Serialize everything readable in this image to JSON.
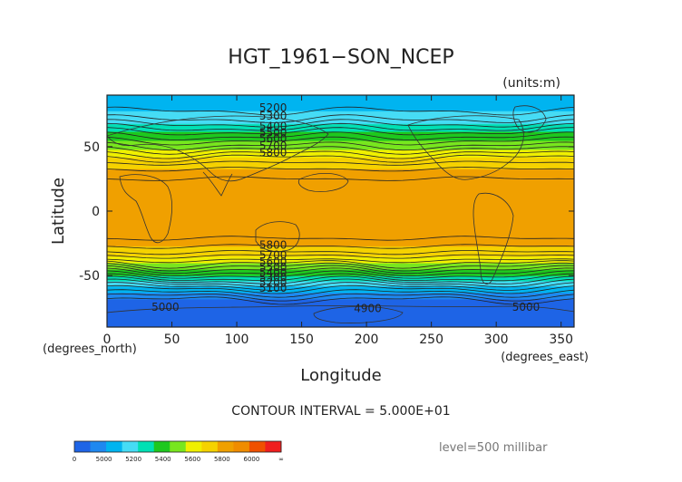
{
  "chart_data": {
    "type": "heatmap",
    "title": "HGT_1961−SON_NCEP",
    "units": "(units:m)",
    "xlabel": "Longitude",
    "ylabel": "Latitude",
    "x_unit_label": "(degrees_east)",
    "y_unit_label": "(degrees_north)",
    "xlim": [
      0,
      360
    ],
    "ylim": [
      -90,
      90
    ],
    "x_ticks": [
      0,
      50,
      100,
      150,
      200,
      250,
      300,
      350
    ],
    "y_ticks": [
      50,
      0,
      -50
    ],
    "contour_interval_text": "CONTOUR INTERVAL = 5.000E+01",
    "level_text": "level=500 millibar",
    "bands": [
      {
        "range": [
          0,
          5000
        ],
        "color": "#1e64e6"
      },
      {
        "range": [
          5000,
          5100
        ],
        "color": "#1e88f0"
      },
      {
        "range": [
          5100,
          5200
        ],
        "color": "#00b4f0"
      },
      {
        "range": [
          5200,
          5300
        ],
        "color": "#46dcf5"
      },
      {
        "range": [
          5300,
          5400
        ],
        "color": "#00e0b4"
      },
      {
        "range": [
          5400,
          5500
        ],
        "color": "#1ec81e"
      },
      {
        "range": [
          5500,
          5600
        ],
        "color": "#78e61e"
      },
      {
        "range": [
          5600,
          5700
        ],
        "color": "#f0f000"
      },
      {
        "range": [
          5700,
          5800
        ],
        "color": "#f5d200"
      },
      {
        "range": [
          5800,
          5900
        ],
        "color": "#f0a000"
      },
      {
        "range": [
          5900,
          6000
        ],
        "color": "#f08c00"
      },
      {
        "range": [
          6000,
          6100
        ],
        "color": "#f05000"
      },
      {
        "range": [
          6100,
          99999
        ],
        "color": "#f01e1e"
      }
    ],
    "zonal_profile": [
      {
        "lat": 90,
        "value": 5160
      },
      {
        "lat": 80,
        "value": 5180
      },
      {
        "lat": 70,
        "value": 5260
      },
      {
        "lat": 60,
        "value": 5420
      },
      {
        "lat": 50,
        "value": 5560
      },
      {
        "lat": 40,
        "value": 5720
      },
      {
        "lat": 30,
        "value": 5830
      },
      {
        "lat": 20,
        "value": 5870
      },
      {
        "lat": 0,
        "value": 5870
      },
      {
        "lat": -20,
        "value": 5860
      },
      {
        "lat": -30,
        "value": 5780
      },
      {
        "lat": -40,
        "value": 5620
      },
      {
        "lat": -50,
        "value": 5400
      },
      {
        "lat": -60,
        "value": 5160
      },
      {
        "lat": -70,
        "value": 4980
      },
      {
        "lat": -80,
        "value": 4920
      },
      {
        "lat": -90,
        "value": 4930
      }
    ],
    "contour_labels_north": [
      "5200",
      "5300",
      "5400",
      "5500",
      "5600",
      "5700",
      "5800"
    ],
    "contour_labels_south": [
      "5800",
      "5700",
      "5600",
      "5500",
      "5400",
      "5300",
      "5200",
      "5100"
    ],
    "annotation_labels": [
      {
        "text": "5000",
        "x": 45,
        "y": -74
      },
      {
        "text": "4900",
        "x": 201,
        "y": -75
      },
      {
        "text": "5000",
        "x": 323,
        "y": -74
      }
    ],
    "colorbar": {
      "labels": [
        "0",
        "5000",
        "5200",
        "5400",
        "5600",
        "5800",
        "6000",
        "∞"
      ],
      "colors": [
        "#1e64e6",
        "#1e88f0",
        "#00b4f0",
        "#46dcf5",
        "#00e0b4",
        "#1ec81e",
        "#78e61e",
        "#f0f000",
        "#f5d200",
        "#f0a000",
        "#f08c00",
        "#f05000",
        "#f01e1e"
      ]
    }
  }
}
